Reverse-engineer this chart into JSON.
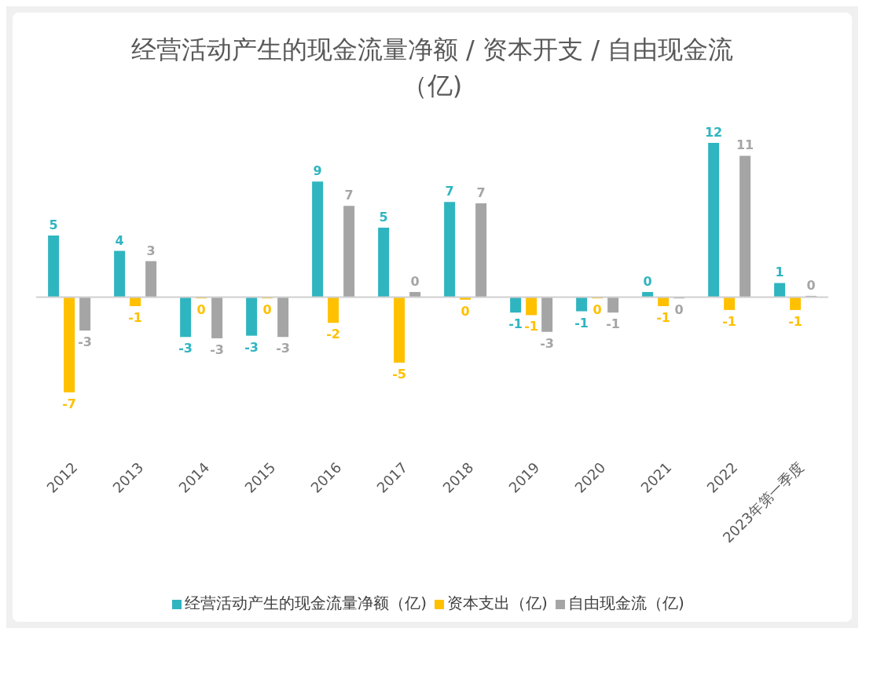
{
  "chart_data": {
    "type": "bar",
    "title": "经营活动产生的现金流量净额 / 资本开支 / 自由现金流（亿)",
    "categories": [
      "2012",
      "2013",
      "2014",
      "2015",
      "2016",
      "2017",
      "2018",
      "2019",
      "2020",
      "2021",
      "2022",
      "2023年第一季度"
    ],
    "series": [
      {
        "name": "经营活动产生的现金流量净额（亿)",
        "color": "#2fb5c0",
        "values": [
          4.8,
          3.6,
          -3.1,
          -3.0,
          9.0,
          5.4,
          7.4,
          -1.2,
          -1.1,
          0.4,
          12.0,
          1.1
        ],
        "value_labels": [
          "5",
          "4",
          "-3",
          "-3",
          "9",
          "5",
          "7",
          "-1",
          "-1",
          "0",
          "12",
          "1"
        ]
      },
      {
        "name": "资本支出（亿)",
        "color": "#ffc000",
        "values": [
          -7.4,
          -0.7,
          -0.1,
          -0.1,
          -2.0,
          -5.1,
          -0.2,
          -1.4,
          -0.1,
          -0.7,
          -1.0,
          -1.0
        ],
        "value_labels": [
          "-7",
          "-1",
          "0",
          "0",
          "-2",
          "-5",
          "0",
          "-1",
          "0",
          "-1",
          "-1",
          "-1"
        ]
      },
      {
        "name": "自由现金流（亿)",
        "color": "#a5a5a5",
        "values": [
          -2.6,
          2.8,
          -3.2,
          -3.1,
          7.1,
          0.4,
          7.3,
          -2.7,
          -1.2,
          -0.1,
          11.0,
          0.1
        ],
        "value_labels": [
          "-3",
          "3",
          "-3",
          "-3",
          "7",
          "0",
          "7",
          "-3",
          "-1",
          "0",
          "11",
          "0"
        ]
      }
    ],
    "legend": "bottom",
    "grid": false
  }
}
